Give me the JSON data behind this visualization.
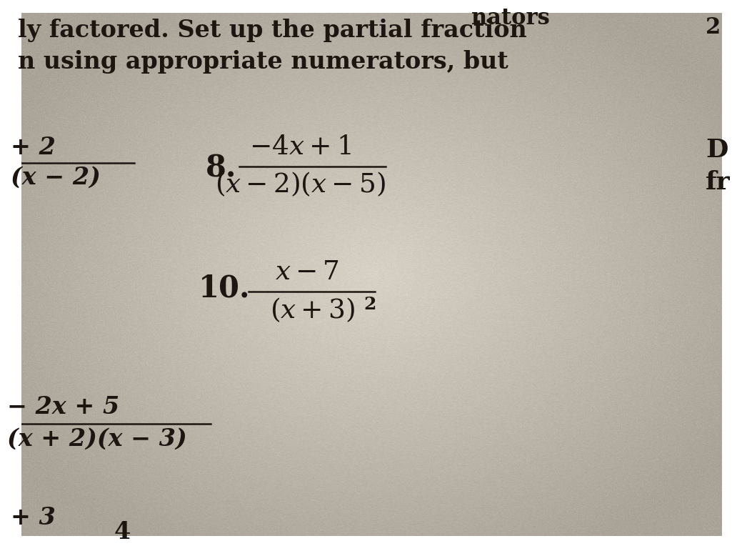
{
  "background_color_center": "#d8d2c5",
  "background_color_edge": "#b0a898",
  "fig_width": 9.8,
  "fig_height": 7.32,
  "text_color": "#1c1510",
  "header_line1": "ly factored. Set up the partial fraction",
  "header_line2": "n using appropriate numerators, but",
  "top_right_nators": "nators",
  "top_right_2": "2",
  "left_frac1_top": "+ 2",
  "left_frac1_bot": "(x − 2)",
  "left_frac2_top": "− 2x + 5",
  "left_frac2_bot": "(x + 2)(x − 3)",
  "left_bottom": "+ 3",
  "prob8_label": "8.",
  "prob8_num": "$-4x + 1$",
  "prob8_den": "$(x - 2)(x - 5)$",
  "prob10_label": "10.",
  "prob10_num": "$x - 7$",
  "prob10_den": "$(x + 3)$",
  "prob10_exp": "2",
  "right_D": "D",
  "right_fr": "fr",
  "font_size_header": 24,
  "font_size_math": 26,
  "font_size_label": 28
}
